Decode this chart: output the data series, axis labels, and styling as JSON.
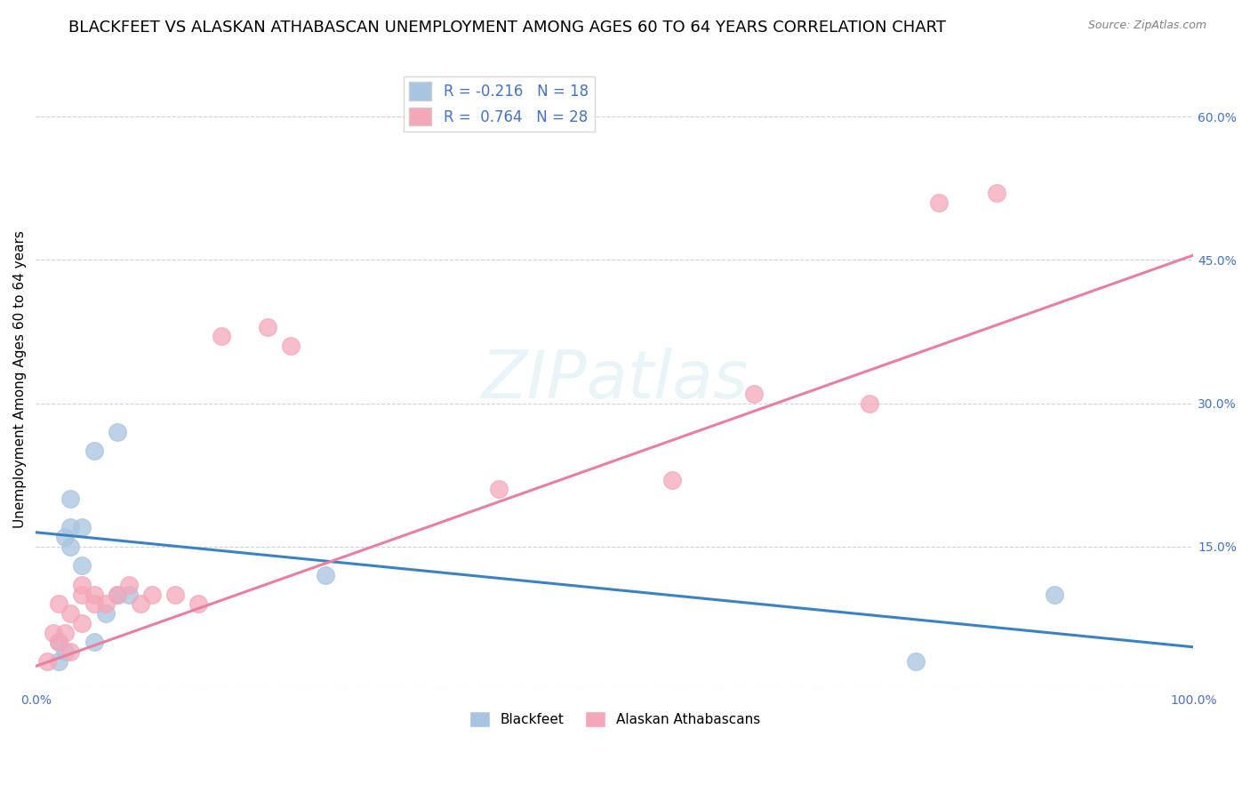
{
  "title": "BLACKFEET VS ALASKAN ATHABASCAN UNEMPLOYMENT AMONG AGES 60 TO 64 YEARS CORRELATION CHART",
  "source": "Source: ZipAtlas.com",
  "ylabel": "Unemployment Among Ages 60 to 64 years",
  "xlim": [
    0,
    1.0
  ],
  "ylim": [
    0,
    0.65
  ],
  "yticks_right": [
    0.0,
    0.15,
    0.3,
    0.45,
    0.6
  ],
  "ytick_labels_right": [
    "",
    "15.0%",
    "30.0%",
    "45.0%",
    "60.0%"
  ],
  "blackfeet_R": -0.216,
  "blackfeet_N": 18,
  "alaskan_R": 0.764,
  "alaskan_N": 28,
  "blackfeet_color": "#a8c4e0",
  "alaskan_color": "#f4a7b9",
  "blackfeet_line_color": "#3b82c4",
  "alaskan_line_color": "#e87fa0",
  "blackfeet_line_x0": 0.0,
  "blackfeet_line_y0": 0.165,
  "blackfeet_line_x1": 1.0,
  "blackfeet_line_y1": 0.045,
  "alaskan_line_x0": 0.0,
  "alaskan_line_y0": 0.025,
  "alaskan_line_x1": 1.0,
  "alaskan_line_y1": 0.455,
  "blackfeet_x": [
    0.02,
    0.02,
    0.025,
    0.025,
    0.03,
    0.03,
    0.03,
    0.04,
    0.04,
    0.05,
    0.05,
    0.06,
    0.07,
    0.07,
    0.08,
    0.25,
    0.88,
    0.76
  ],
  "blackfeet_y": [
    0.03,
    0.05,
    0.04,
    0.16,
    0.15,
    0.17,
    0.2,
    0.17,
    0.13,
    0.05,
    0.25,
    0.08,
    0.1,
    0.27,
    0.1,
    0.12,
    0.1,
    0.03
  ],
  "alaskan_x": [
    0.01,
    0.015,
    0.02,
    0.02,
    0.025,
    0.03,
    0.03,
    0.04,
    0.04,
    0.04,
    0.05,
    0.05,
    0.06,
    0.07,
    0.08,
    0.09,
    0.1,
    0.12,
    0.14,
    0.16,
    0.2,
    0.22,
    0.4,
    0.55,
    0.62,
    0.72,
    0.78,
    0.83
  ],
  "alaskan_y": [
    0.03,
    0.06,
    0.05,
    0.09,
    0.06,
    0.04,
    0.08,
    0.1,
    0.11,
    0.07,
    0.09,
    0.1,
    0.09,
    0.1,
    0.11,
    0.09,
    0.1,
    0.1,
    0.09,
    0.37,
    0.38,
    0.36,
    0.21,
    0.22,
    0.31,
    0.3,
    0.51,
    0.52
  ],
  "watermark_text": "ZIPatlas",
  "background_color": "#ffffff",
  "grid_color": "#cccccc",
  "title_fontsize": 13,
  "label_fontsize": 11,
  "tick_fontsize": 10,
  "marker_size": 200,
  "legend_fontsize": 12
}
